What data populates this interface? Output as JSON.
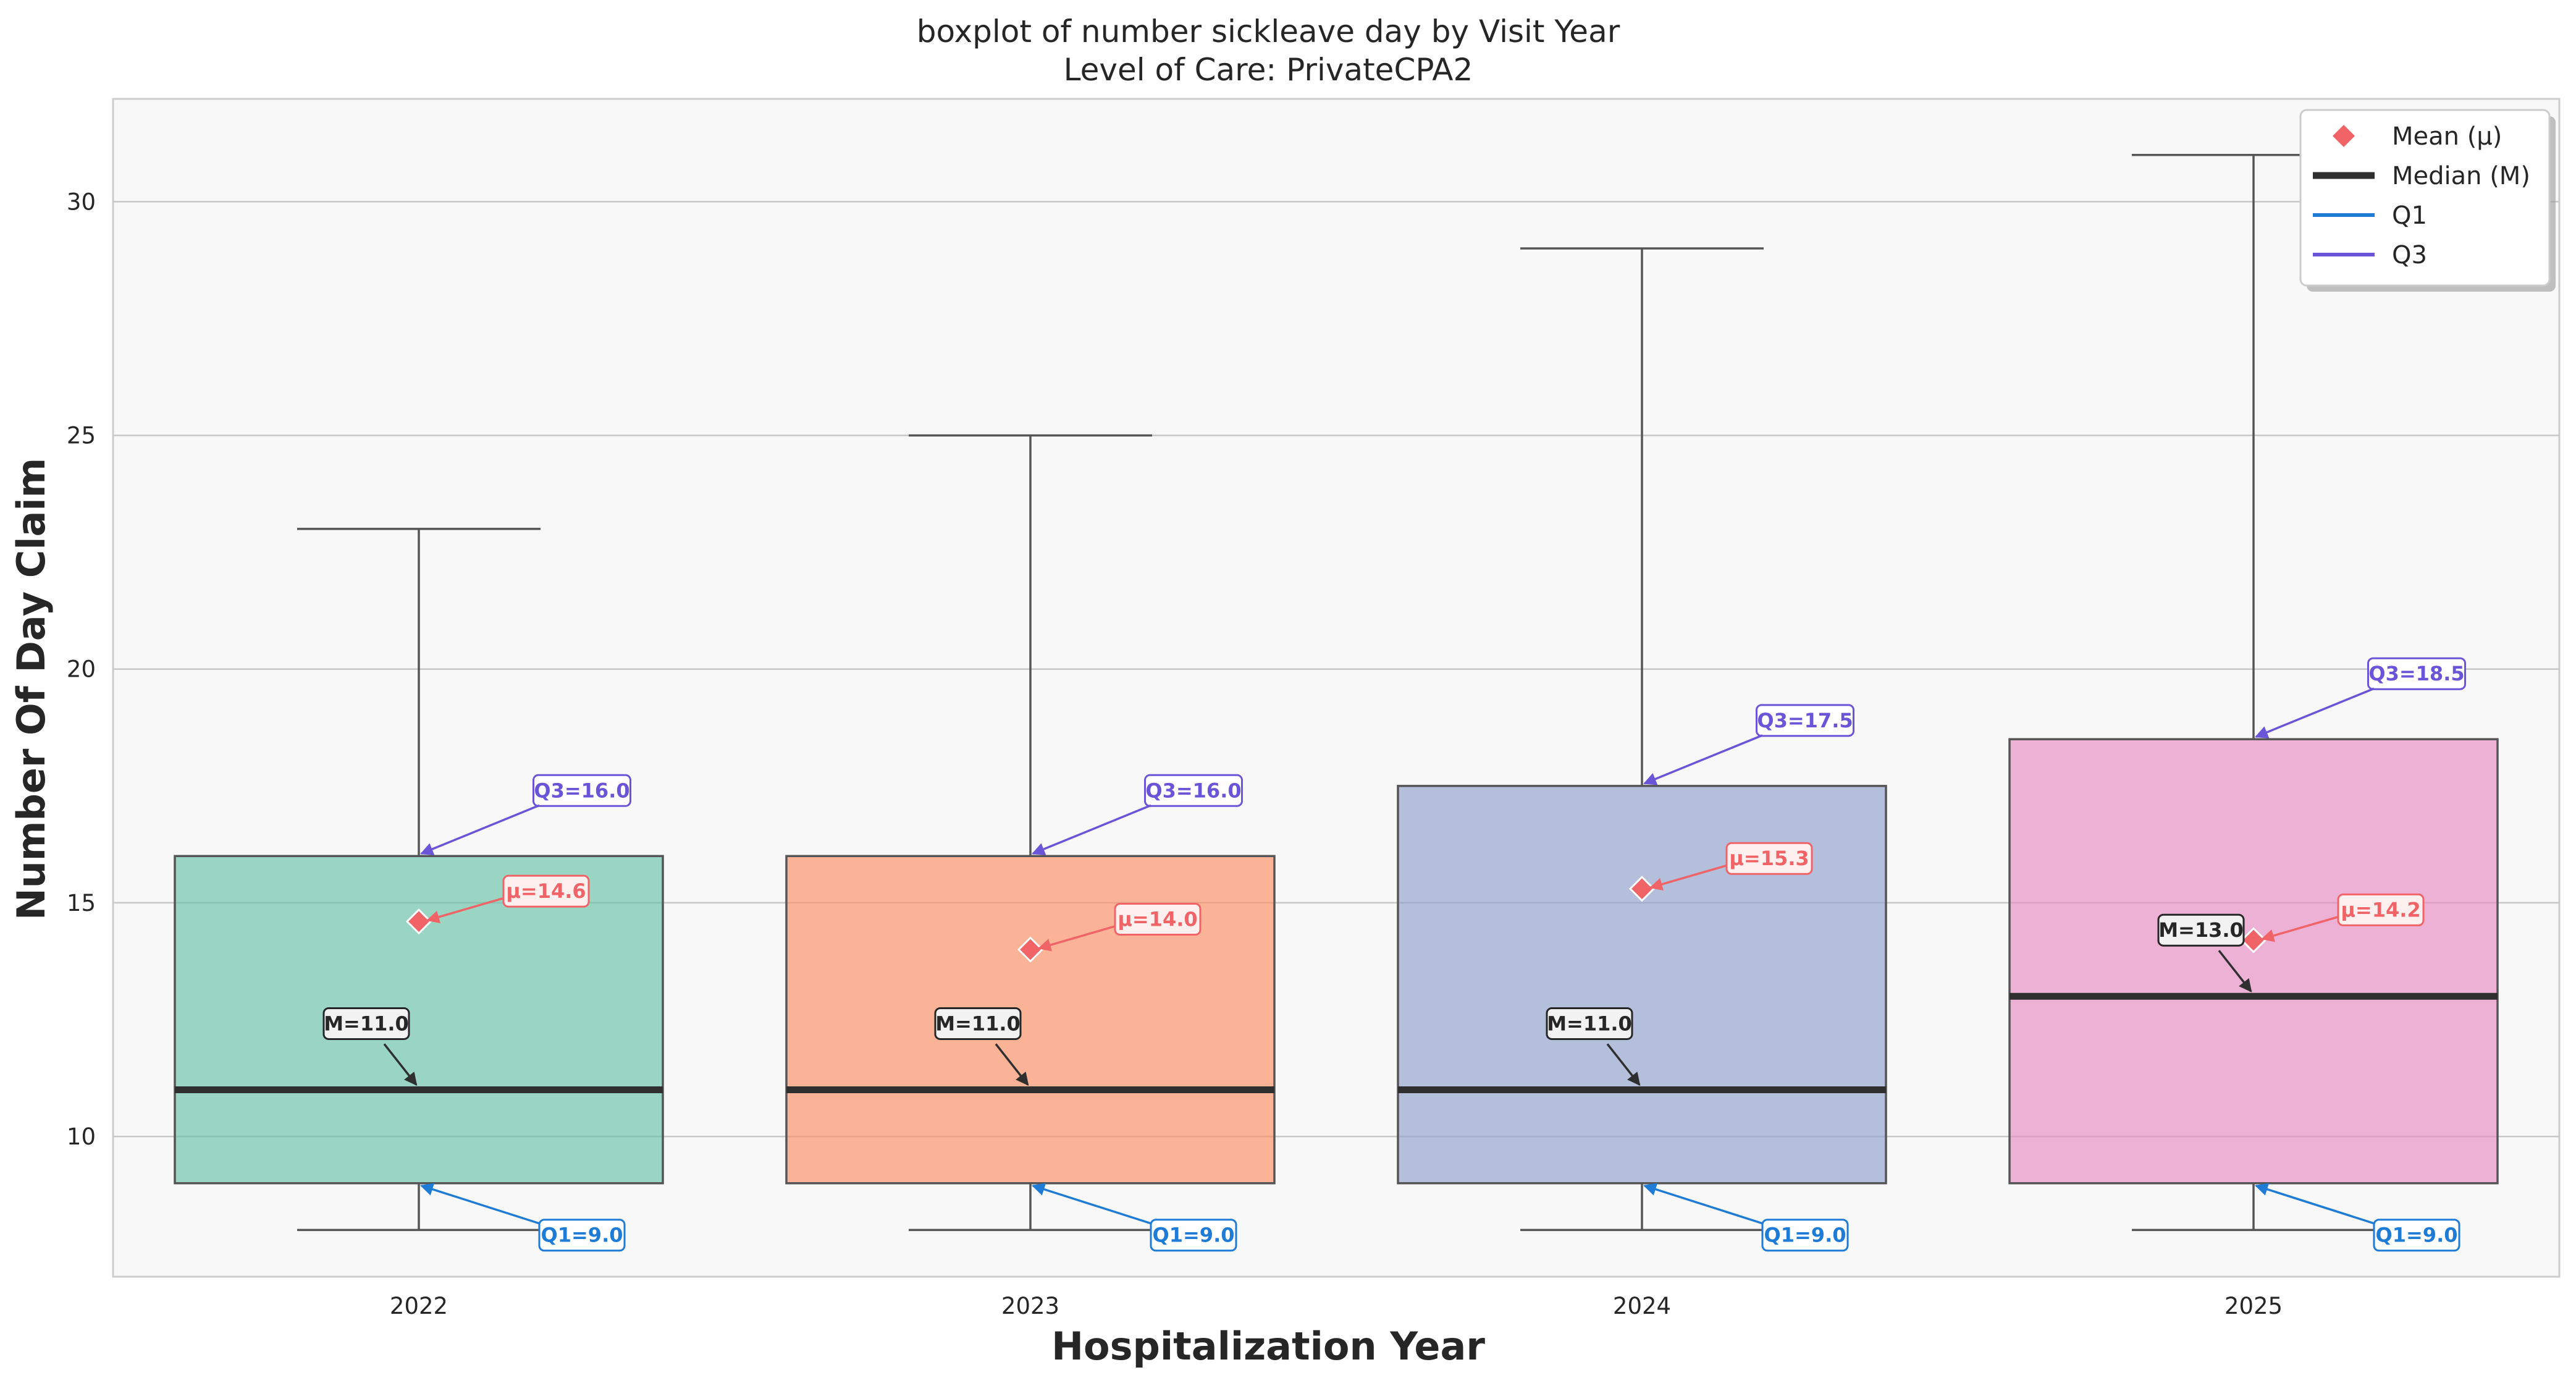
{
  "chart_data": {
    "type": "boxplot",
    "title": "boxplot of number sickleave day by Visit Year",
    "subtitle": "Level of Care: PrivateCPA2",
    "xlabel": "Hospitalization Year",
    "ylabel": "Number Of Day Claim",
    "ylim": [
      7.0,
      32.2
    ],
    "yticks": [
      10,
      15,
      20,
      25,
      30
    ],
    "grid": true,
    "legend_position": "top-right",
    "categories": [
      "2022",
      "2023",
      "2024",
      "2025"
    ],
    "boxes": [
      {
        "category": "2022",
        "color": "#66c2a5",
        "whisker_low": 8.0,
        "q1": 9.0,
        "median": 11.0,
        "q3": 16.0,
        "whisker_high": 23.0,
        "mean": 14.6,
        "labels": {
          "q1": "Q1=9.0",
          "median": "M=11.0",
          "q3": "Q3=16.0",
          "mean": "μ=14.6"
        }
      },
      {
        "category": "2023",
        "color": "#fc8d62",
        "whisker_low": 8.0,
        "q1": 9.0,
        "median": 11.0,
        "q3": 16.0,
        "whisker_high": 25.0,
        "mean": 14.0,
        "labels": {
          "q1": "Q1=9.0",
          "median": "M=11.0",
          "q3": "Q3=16.0",
          "mean": "μ=14.0"
        }
      },
      {
        "category": "2024",
        "color": "#8da0cb",
        "whisker_low": 8.0,
        "q1": 9.0,
        "median": 11.0,
        "q3": 17.5,
        "whisker_high": 29.0,
        "mean": 15.3,
        "labels": {
          "q1": "Q1=9.0",
          "median": "M=11.0",
          "q3": "Q3=17.5",
          "mean": "μ=15.3"
        }
      },
      {
        "category": "2025",
        "color": "#e78ac3",
        "whisker_low": 8.0,
        "q1": 9.0,
        "median": 13.0,
        "q3": 18.5,
        "whisker_high": 31.0,
        "mean": 14.2,
        "labels": {
          "q1": "Q1=9.0",
          "median": "M=13.0",
          "q3": "Q3=18.5",
          "mean": "μ=14.2"
        }
      }
    ],
    "legend": [
      {
        "label": "Mean (μ)",
        "marker": "diamond",
        "color": "#f06468"
      },
      {
        "label": "Median (M)",
        "marker": "line",
        "color": "#2f2f2f"
      },
      {
        "label": "Q1",
        "marker": "line",
        "color": "#1e7bd6"
      },
      {
        "label": "Q3",
        "marker": "line",
        "color": "#6a55d9"
      }
    ],
    "colors": {
      "mean": "#f06468",
      "median": "#2f2f2f",
      "q1": "#1e7bd6",
      "q3": "#6a55d9",
      "plot_background": "#f8f8f8",
      "grid": "#c8c8c8",
      "whisker": "#555555"
    }
  }
}
